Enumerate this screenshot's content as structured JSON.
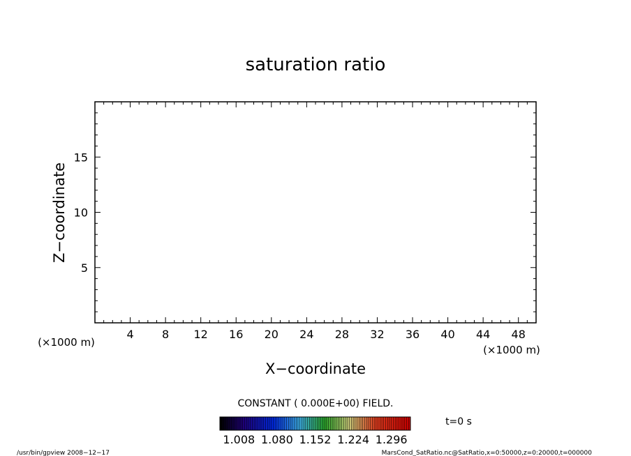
{
  "chart_data": {
    "type": "heatmap",
    "title": "saturation ratio",
    "xlabel": "X−coordinate",
    "ylabel": "Z−coordinate",
    "x_unit_left": "(×1000 m)",
    "x_unit_right": "(×1000 m)",
    "xlim": [
      0,
      50
    ],
    "ylim": [
      0,
      20
    ],
    "x_ticks": [
      4,
      8,
      12,
      16,
      20,
      24,
      28,
      32,
      36,
      40,
      44,
      48
    ],
    "y_ticks": [
      5,
      10,
      15
    ],
    "x_minor_step": 1,
    "y_minor_step": 1,
    "field_note": "CONSTANT ( 0.000E+00) FIELD.",
    "time_label": "t=0 s",
    "colorbar": {
      "min": 0.972,
      "max": 1.332,
      "bands": 100,
      "tick_labels": [
        "1.008",
        "1.080",
        "1.152",
        "1.224",
        "1.296"
      ],
      "tick_values": [
        1.008,
        1.08,
        1.152,
        1.224,
        1.296
      ]
    },
    "footer_left": "/usr/bin/gpview   2008−12−17",
    "footer_right": "MarsCond_SatRatio.nc@SatRatio,x=0:50000,z=0:20000,t=000000"
  }
}
